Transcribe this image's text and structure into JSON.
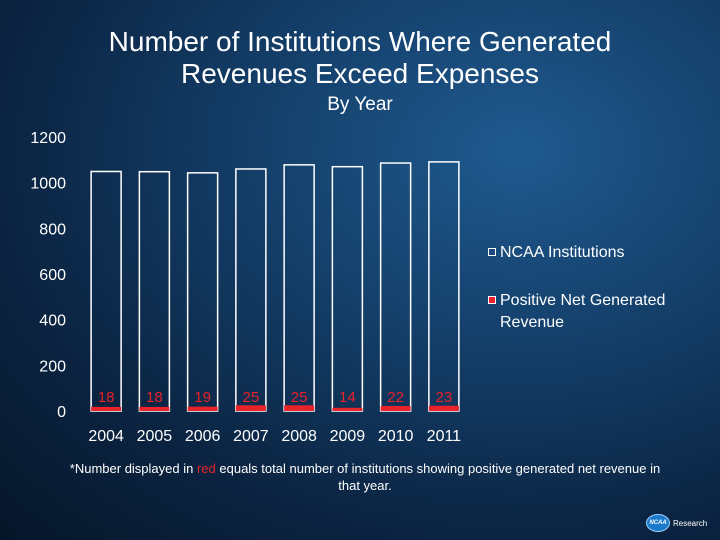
{
  "title": {
    "line1": "Number of Institutions Where Generated",
    "line2": "Revenues Exceed Expenses",
    "subtitle": "By Year"
  },
  "legend": {
    "items": [
      {
        "label": "NCAA Institutions",
        "color": "#ffffff"
      },
      {
        "label": "Positive Net Generated Revenue",
        "color": "#e8232a"
      }
    ]
  },
  "footnote": {
    "prefix": "*Number displayed in ",
    "highlight": "red",
    "suffix": " equals total number of institutions showing positive generated net revenue in that year."
  },
  "logo": {
    "badge": "NCAA",
    "text": "Research"
  },
  "chart_data": {
    "type": "bar",
    "categories": [
      "2004",
      "2005",
      "2006",
      "2007",
      "2008",
      "2009",
      "2010",
      "2011"
    ],
    "series": [
      {
        "name": "NCAA Institutions",
        "values": [
          1049,
          1048,
          1043,
          1060,
          1078,
          1070,
          1086,
          1091
        ],
        "color": "#ffffff"
      },
      {
        "name": "Positive Net Generated Revenue",
        "values": [
          18,
          18,
          19,
          25,
          25,
          14,
          22,
          23
        ],
        "color": "#e8232a"
      }
    ],
    "data_labels": [
      "18",
      "18",
      "19",
      "25",
      "25",
      "14",
      "22",
      "23"
    ],
    "yticks": [
      "0",
      "200",
      "400",
      "600",
      "800",
      "1000",
      "1200"
    ],
    "ylim": [
      0,
      1200
    ],
    "legend_position": "right",
    "grid": false
  }
}
